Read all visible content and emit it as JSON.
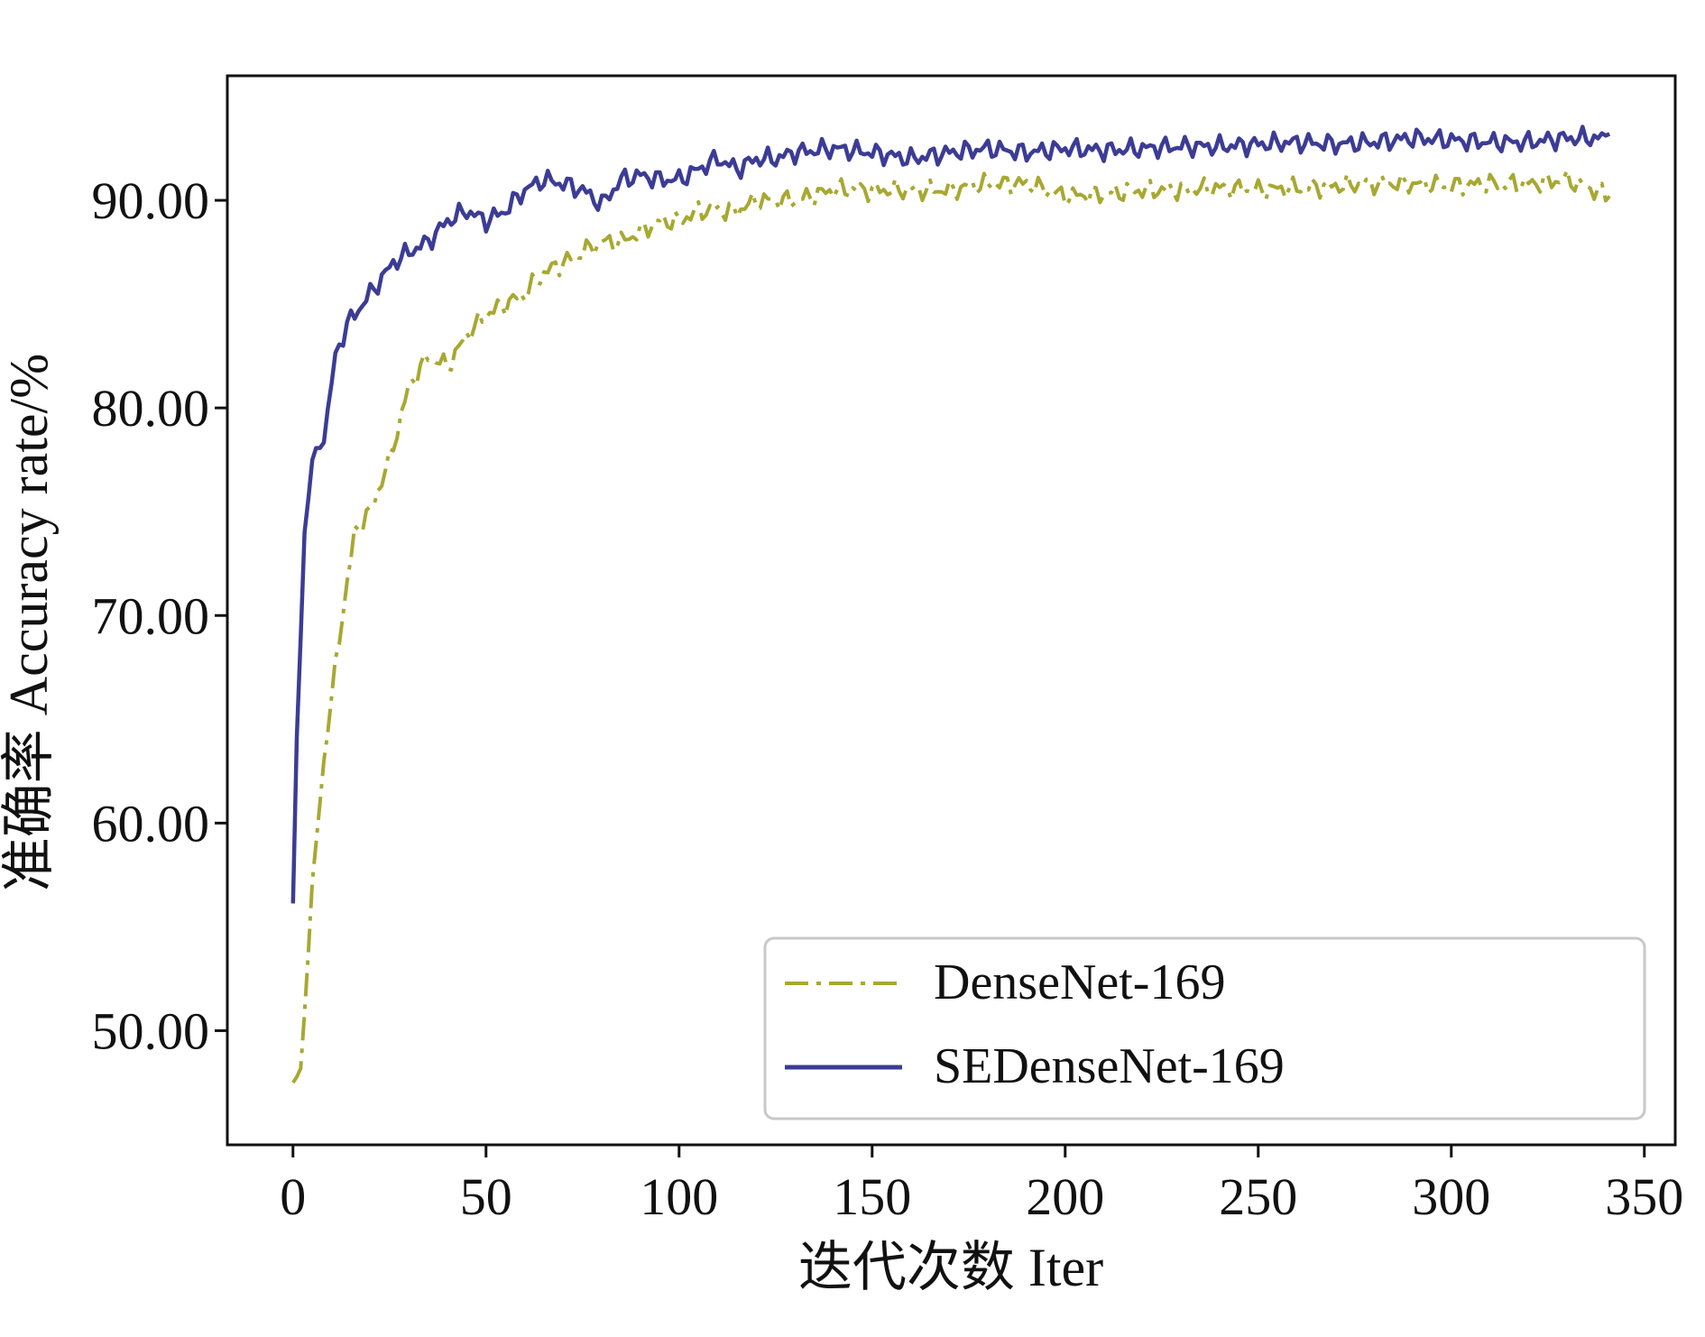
{
  "chart_data": {
    "type": "line",
    "title": "",
    "xlabel": "迭代次数 Iter",
    "ylabel": "准确率 Accuracy rate/%",
    "xlim": [
      -17,
      358
    ],
    "ylim": [
      44.5,
      96
    ],
    "x_ticks": [
      0,
      50,
      100,
      150,
      200,
      250,
      300,
      350
    ],
    "x_tick_labels": [
      "0",
      "50",
      "100",
      "150",
      "200",
      "250",
      "300",
      "350"
    ],
    "y_ticks": [
      50,
      60,
      70,
      80,
      90
    ],
    "y_tick_labels": [
      "50.00",
      "60.00",
      "70.00",
      "80.00",
      "90.00"
    ],
    "grid": false,
    "legend_position": "lower-right",
    "series": [
      {
        "name": "DenseNet-169",
        "color": "#a8a832",
        "style": "dash-dot",
        "x": [
          0,
          2,
          5,
          8,
          12,
          16,
          20,
          25,
          30,
          35,
          40,
          45,
          50,
          55,
          60,
          65,
          70,
          75,
          80,
          85,
          90,
          95,
          100,
          105,
          110,
          115,
          120,
          125,
          130,
          140,
          150,
          160,
          170,
          180,
          190,
          200,
          210,
          220,
          230,
          240,
          250,
          260,
          270,
          280,
          290,
          300,
          310,
          320,
          330,
          341
        ],
        "y": [
          47.5,
          48.0,
          57.0,
          63.0,
          69.0,
          74.0,
          75.0,
          77.5,
          81.0,
          82.5,
          82.0,
          83.5,
          84.5,
          85.0,
          85.5,
          86.5,
          87.0,
          87.5,
          88.0,
          88.0,
          88.5,
          89.0,
          89.0,
          89.5,
          89.5,
          89.5,
          90.0,
          90.0,
          90.0,
          90.5,
          90.5,
          90.5,
          90.5,
          90.8,
          90.8,
          90.2,
          90.3,
          90.5,
          90.5,
          90.6,
          90.5,
          90.6,
          90.7,
          90.8,
          90.8,
          90.7,
          90.8,
          90.8,
          91.0,
          90.2
        ]
      },
      {
        "name": "SEDenseNet-169",
        "color": "#3c3c96",
        "style": "solid",
        "x": [
          0,
          1,
          3,
          5,
          8,
          11,
          14,
          18,
          22,
          26,
          30,
          35,
          40,
          45,
          50,
          55,
          60,
          65,
          70,
          75,
          80,
          85,
          90,
          95,
          100,
          105,
          110,
          115,
          120,
          125,
          130,
          140,
          150,
          160,
          170,
          180,
          190,
          200,
          210,
          220,
          230,
          240,
          250,
          260,
          270,
          280,
          290,
          300,
          310,
          320,
          330,
          340,
          341
        ],
        "y": [
          56.0,
          64.0,
          74.0,
          77.5,
          78.5,
          82.5,
          84.0,
          85.0,
          86.0,
          87.0,
          87.5,
          88.0,
          89.0,
          89.5,
          89.0,
          89.5,
          90.5,
          91.0,
          90.8,
          90.5,
          89.8,
          91.0,
          91.2,
          91.0,
          91.0,
          91.5,
          92.0,
          91.5,
          92.0,
          92.0,
          92.3,
          92.5,
          92.3,
          92.0,
          92.3,
          92.5,
          92.3,
          92.5,
          92.4,
          92.5,
          92.6,
          92.6,
          92.7,
          92.8,
          92.7,
          92.8,
          93.0,
          92.9,
          92.8,
          92.8,
          93.0,
          93.0,
          93.2
        ]
      }
    ]
  }
}
